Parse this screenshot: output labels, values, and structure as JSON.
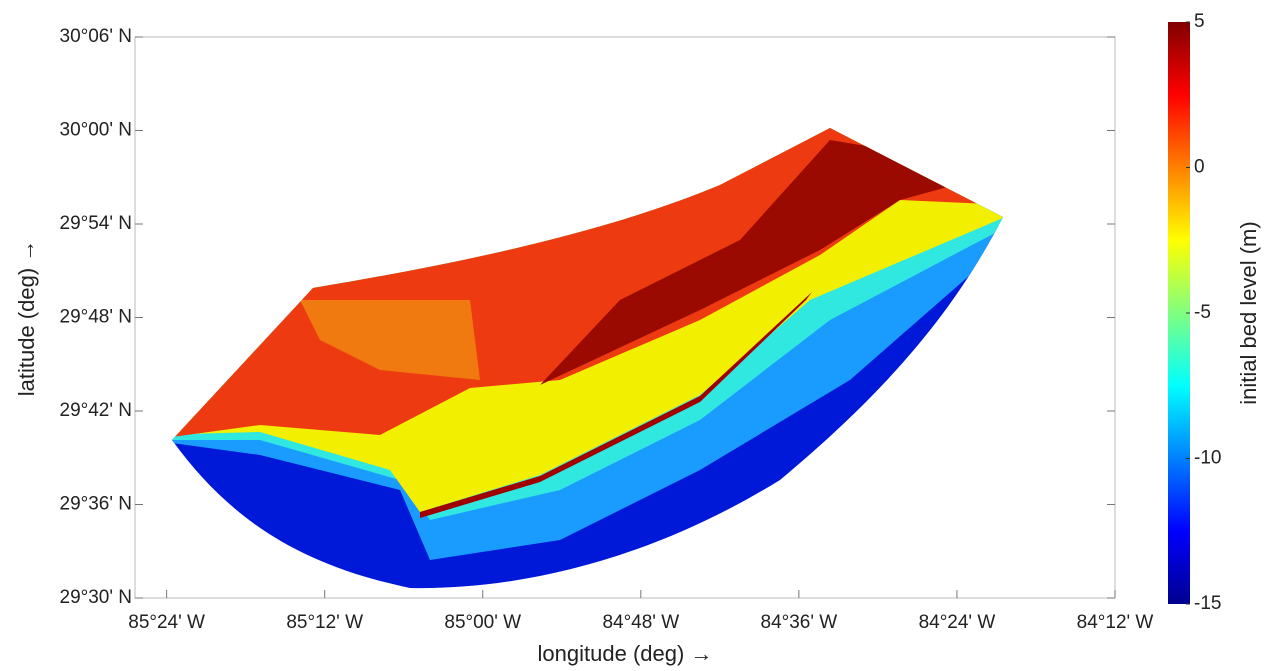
{
  "chart_data": {
    "type": "map",
    "xlabel": "longitude (deg) →",
    "ylabel": "latitude (deg) →",
    "xlim": [
      -85.44,
      -84.2
    ],
    "ylim": [
      29.5,
      30.1
    ],
    "xticks": [
      {
        "value": -85.4,
        "label": "85°24' W"
      },
      {
        "value": -85.2,
        "label": "85°12' W"
      },
      {
        "value": -85.0,
        "label": "85°00' W"
      },
      {
        "value": -84.8,
        "label": "84°48' W"
      },
      {
        "value": -84.6,
        "label": "84°36' W"
      },
      {
        "value": -84.4,
        "label": "84°24' W"
      },
      {
        "value": -84.2,
        "label": "84°12' W"
      }
    ],
    "yticks": [
      {
        "value": 30.1,
        "label": "30°06' N"
      },
      {
        "value": 30.0,
        "label": "30°00' N"
      },
      {
        "value": 29.9,
        "label": "29°54' N"
      },
      {
        "value": 29.8,
        "label": "29°48' N"
      },
      {
        "value": 29.7,
        "label": "29°42' N"
      },
      {
        "value": 29.6,
        "label": "29°36' N"
      },
      {
        "value": 29.5,
        "label": "29°30' N"
      }
    ],
    "colorbar": {
      "label": "initial bed level (m)",
      "lim": [
        -15,
        5
      ],
      "ticks": [
        5,
        0,
        -5,
        -10,
        -15
      ],
      "colormap": [
        "#00008f",
        "#0000ff",
        "#0080ff",
        "#00ffff",
        "#80ff80",
        "#ffff00",
        "#ff8000",
        "#ff0000",
        "#800000"
      ]
    }
  }
}
